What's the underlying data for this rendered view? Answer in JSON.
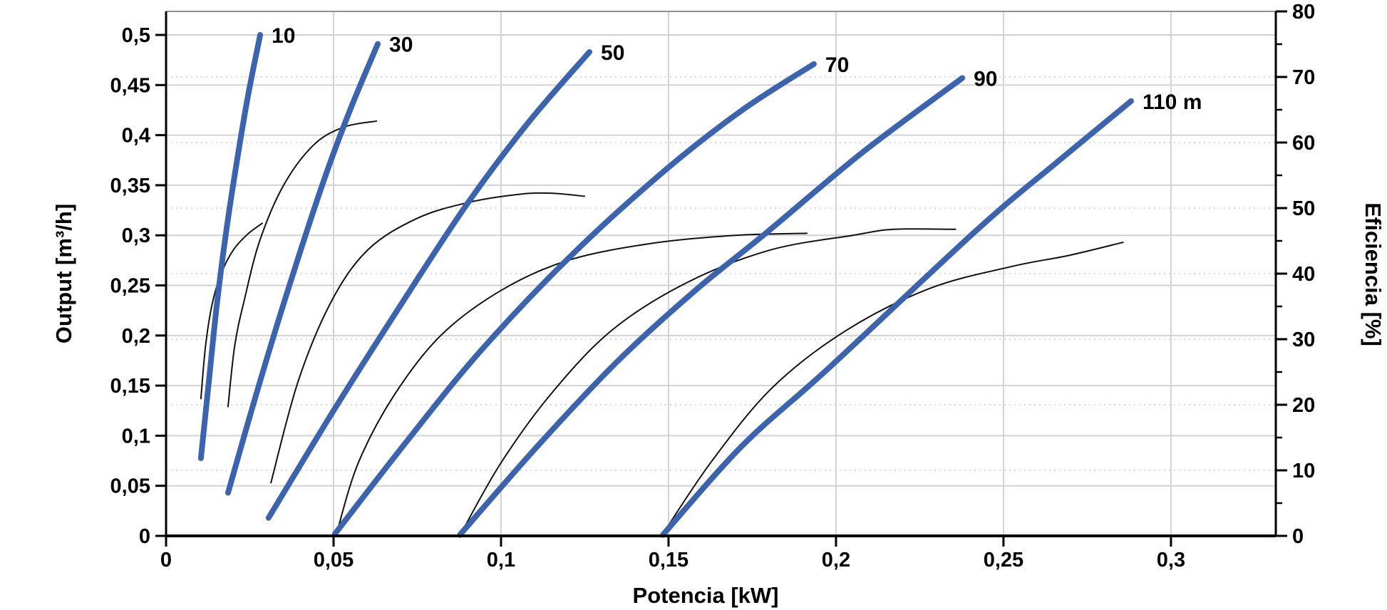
{
  "chart_data": {
    "type": "line",
    "title": "",
    "x_axis": {
      "label": "Potencia [kW]",
      "min": 0,
      "max": 0.3313,
      "ticks": [
        {
          "v": 0,
          "t": "0"
        },
        {
          "v": 0.05,
          "t": "0,05"
        },
        {
          "v": 0.1,
          "t": "0,1"
        },
        {
          "v": 0.15,
          "t": "0,15"
        },
        {
          "v": 0.2,
          "t": "0,2"
        },
        {
          "v": 0.25,
          "t": "0,25"
        },
        {
          "v": 0.3,
          "t": "0,3"
        }
      ],
      "grid": "solid"
    },
    "y_axis_left": {
      "label": "Output [m³/h]",
      "min": 0,
      "max": 0.5235,
      "ticks": [
        {
          "v": 0,
          "t": "0"
        },
        {
          "v": 0.05,
          "t": "0,05"
        },
        {
          "v": 0.1,
          "t": "0,1"
        },
        {
          "v": 0.15,
          "t": "0,15"
        },
        {
          "v": 0.2,
          "t": "0,2"
        },
        {
          "v": 0.25,
          "t": "0,25"
        },
        {
          "v": 0.3,
          "t": "0,3"
        },
        {
          "v": 0.35,
          "t": "0,35"
        },
        {
          "v": 0.4,
          "t": "0,4"
        },
        {
          "v": 0.45,
          "t": "0,45"
        },
        {
          "v": 0.5,
          "t": "0,5"
        }
      ],
      "grid": "solid"
    },
    "y_axis_right": {
      "label": "Eficiencia [%]",
      "min": 0,
      "max": 80,
      "major_ticks": [
        {
          "v": 0,
          "t": "0"
        },
        {
          "v": 10,
          "t": "10"
        },
        {
          "v": 20,
          "t": "20"
        },
        {
          "v": 30,
          "t": "30"
        },
        {
          "v": 40,
          "t": "40"
        },
        {
          "v": 50,
          "t": "50"
        },
        {
          "v": 60,
          "t": "60"
        },
        {
          "v": 70,
          "t": "70"
        },
        {
          "v": 80,
          "t": "80"
        }
      ],
      "minor_tick_step": 5,
      "grid": "dotted"
    },
    "colors": {
      "power_curve": "#3a63b0",
      "efficiency_curve": "#111111",
      "grid_solid": "#d2d2d2",
      "grid_dotted": "#d9d9d9",
      "spine": "#000000",
      "spine_top": "#909090",
      "text": "#000000"
    },
    "series": [
      {
        "head_m": 10,
        "label": "10",
        "power_curve": [
          [
            0.0104,
            0.0775
          ],
          [
            0.0128,
            0.155
          ],
          [
            0.0152,
            0.232
          ],
          [
            0.018,
            0.305
          ],
          [
            0.0212,
            0.375
          ],
          [
            0.0245,
            0.44
          ],
          [
            0.0281,
            0.5
          ]
        ],
        "efficiency_curve": [
          [
            0.0104,
            0.137
          ],
          [
            0.0118,
            0.19
          ],
          [
            0.0138,
            0.232
          ],
          [
            0.0165,
            0.262
          ],
          [
            0.02,
            0.285
          ],
          [
            0.0243,
            0.301
          ],
          [
            0.0287,
            0.312
          ]
        ],
        "efficiency_end_pct": 48
      },
      {
        "head_m": 30,
        "label": "30",
        "power_curve": [
          [
            0.0185,
            0.043
          ],
          [
            0.0268,
            0.14
          ],
          [
            0.0355,
            0.236
          ],
          [
            0.0466,
            0.35
          ],
          [
            0.0548,
            0.424
          ],
          [
            0.0632,
            0.491
          ]
        ],
        "efficiency_curve": [
          [
            0.0185,
            0.129
          ],
          [
            0.0205,
            0.19
          ],
          [
            0.0234,
            0.236
          ],
          [
            0.028,
            0.295
          ],
          [
            0.0351,
            0.35
          ],
          [
            0.044,
            0.39
          ],
          [
            0.053,
            0.408
          ],
          [
            0.0628,
            0.414
          ]
        ],
        "efficiency_end_pct": 63
      },
      {
        "head_m": 50,
        "label": "50",
        "power_curve": [
          [
            0.0306,
            0.018
          ],
          [
            0.05,
            0.125
          ],
          [
            0.069,
            0.225
          ],
          [
            0.0894,
            0.329
          ],
          [
            0.108,
            0.412
          ],
          [
            0.1264,
            0.483
          ]
        ],
        "efficiency_curve": [
          [
            0.0313,
            0.053
          ],
          [
            0.0395,
            0.155
          ],
          [
            0.0495,
            0.235
          ],
          [
            0.0604,
            0.286
          ],
          [
            0.075,
            0.317
          ],
          [
            0.0905,
            0.333
          ],
          [
            0.1055,
            0.341
          ],
          [
            0.115,
            0.342
          ],
          [
            0.1249,
            0.339
          ]
        ],
        "efficiency_end_pct": 52
      },
      {
        "head_m": 70,
        "label": "70",
        "power_curve": [
          [
            0.0504,
            0.002
          ],
          [
            0.072,
            0.095
          ],
          [
            0.094,
            0.185
          ],
          [
            0.121,
            0.28
          ],
          [
            0.149,
            0.365
          ],
          [
            0.172,
            0.425
          ],
          [
            0.1934,
            0.471
          ]
        ],
        "efficiency_curve": [
          [
            0.0511,
            0.005
          ],
          [
            0.0574,
            0.073
          ],
          [
            0.068,
            0.14
          ],
          [
            0.082,
            0.2
          ],
          [
            0.1,
            0.245
          ],
          [
            0.12,
            0.275
          ],
          [
            0.145,
            0.292
          ],
          [
            0.17,
            0.3
          ],
          [
            0.1913,
            0.302
          ]
        ],
        "efficiency_end_pct": 46
      },
      {
        "head_m": 90,
        "label": "90",
        "power_curve": [
          [
            0.0877,
            0.001
          ],
          [
            0.111,
            0.09
          ],
          [
            0.135,
            0.175
          ],
          [
            0.158,
            0.245
          ],
          [
            0.179,
            0.302
          ],
          [
            0.208,
            0.383
          ],
          [
            0.2377,
            0.457
          ]
        ],
        "efficiency_curve": [
          [
            0.0883,
            0.004
          ],
          [
            0.1,
            0.073
          ],
          [
            0.115,
            0.142
          ],
          [
            0.133,
            0.205
          ],
          [
            0.155,
            0.252
          ],
          [
            0.18,
            0.285
          ],
          [
            0.205,
            0.3
          ],
          [
            0.2173,
            0.306
          ],
          [
            0.2357,
            0.306
          ]
        ],
        "efficiency_end_pct": 47
      },
      {
        "head_m": 110,
        "label": "110 m",
        "power_curve": [
          [
            0.1483,
            0.001
          ],
          [
            0.172,
            0.09
          ],
          [
            0.198,
            0.168
          ],
          [
            0.2426,
            0.307
          ],
          [
            0.266,
            0.373
          ],
          [
            0.2881,
            0.434
          ]
        ],
        "efficiency_curve": [
          [
            0.1487,
            0.004
          ],
          [
            0.163,
            0.075
          ],
          [
            0.181,
            0.148
          ],
          [
            0.203,
            0.205
          ],
          [
            0.228,
            0.247
          ],
          [
            0.2526,
            0.269
          ],
          [
            0.2696,
            0.28
          ],
          [
            0.2857,
            0.293
          ]
        ],
        "efficiency_end_pct": 45
      }
    ]
  }
}
